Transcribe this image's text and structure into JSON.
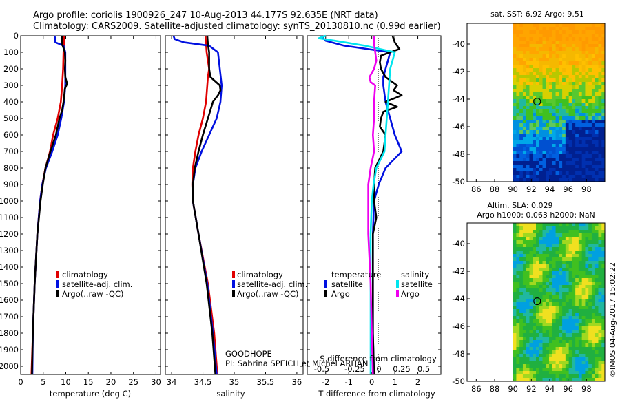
{
  "header": {
    "line1": "Argo profile: coriolis 1900926_247 10-Aug-2013 44.177S 92.635E (NRT data)",
    "line2": "Climatology: CARS2009. Satellite-adjusted climatology: synTS_20130810.nc (0.99d earlier)"
  },
  "colors": {
    "clim": "#e00000",
    "sat": "#0010e0",
    "argo": "#000000",
    "salsat": "#00e5ee",
    "salargo": "#ee00ee"
  },
  "depth_ticks": [
    0,
    100,
    200,
    300,
    400,
    500,
    600,
    700,
    800,
    900,
    1000,
    1100,
    1200,
    1300,
    1400,
    1500,
    1600,
    1700,
    1800,
    1900,
    2000
  ],
  "chart_data": [
    {
      "type": "line",
      "name": "temperature",
      "xlabel": "temperature (deg C)",
      "ylabel": "depth",
      "xlim": [
        0,
        31
      ],
      "ylim": [
        2050,
        0
      ],
      "xticks": [
        0,
        5,
        10,
        15,
        20,
        25,
        30
      ],
      "legend": [
        "climatology",
        "satellite-adj. clim.",
        "Argo(..raw -QC)"
      ],
      "series": [
        {
          "name": "climatology",
          "key": "clim",
          "depth": [
            0,
            50,
            100,
            200,
            300,
            400,
            500,
            600,
            700,
            800,
            900,
            1000,
            1200,
            1500,
            1800,
            2050
          ],
          "values": [
            9.6,
            9.6,
            9.5,
            9.4,
            9.2,
            8.9,
            8.2,
            7.2,
            6.5,
            5.5,
            4.8,
            4.3,
            3.7,
            3.1,
            2.7,
            2.4
          ]
        },
        {
          "name": "satellite-adj. clim.",
          "key": "sat",
          "depth": [
            0,
            10,
            40,
            60,
            100,
            200,
            300,
            400,
            500,
            600,
            700,
            800,
            900,
            1000,
            1200,
            1500,
            1800,
            2050
          ],
          "values": [
            7.5,
            7.6,
            7.7,
            9.5,
            9.9,
            9.9,
            9.9,
            9.6,
            9.0,
            8.2,
            7.0,
            5.6,
            4.8,
            4.3,
            3.7,
            3.1,
            2.7,
            2.6
          ]
        },
        {
          "name": "Argo(..raw -QC)",
          "key": "argo",
          "depth": [
            0,
            50,
            100,
            150,
            200,
            250,
            290,
            320,
            350,
            400,
            450,
            500,
            600,
            700,
            800,
            900,
            1000,
            1200,
            1500,
            1800,
            2050
          ],
          "values": [
            9.2,
            9.2,
            9.8,
            9.9,
            9.8,
            9.9,
            10.3,
            9.8,
            9.7,
            9.5,
            9.2,
            8.6,
            7.8,
            6.6,
            5.5,
            4.9,
            4.4,
            3.7,
            3.1,
            2.7,
            2.5
          ]
        }
      ]
    },
    {
      "type": "line",
      "name": "salinity",
      "xlabel": "salinity",
      "ylabel": "depth",
      "xlim": [
        33.9,
        36.1
      ],
      "ylim": [
        2050,
        0
      ],
      "xticks": [
        34,
        34.5,
        35,
        35.5,
        36
      ],
      "legend": [
        "climatology",
        "satellite-adj. clim.",
        "Argo(..raw -QC)"
      ],
      "annotations": [
        "GOODHOPE",
        "PI: Sabrina SPEICH et Michel ARHAN"
      ],
      "series": [
        {
          "name": "climatology",
          "key": "clim",
          "depth": [
            0,
            50,
            100,
            150,
            200,
            250,
            300,
            400,
            500,
            600,
            700,
            800,
            900,
            1000,
            1200,
            1500,
            1800,
            2050
          ],
          "values": [
            34.54,
            34.55,
            34.56,
            34.58,
            34.6,
            34.58,
            34.57,
            34.55,
            34.5,
            34.43,
            34.38,
            34.34,
            34.33,
            34.34,
            34.43,
            34.58,
            34.68,
            34.73
          ]
        },
        {
          "name": "satellite-adj. clim.",
          "key": "sat",
          "depth": [
            0,
            20,
            40,
            60,
            100,
            200,
            300,
            400,
            500,
            600,
            700,
            800,
            900,
            1000,
            1200,
            1500,
            1800,
            2050
          ],
          "values": [
            34.03,
            34.05,
            34.2,
            34.6,
            34.74,
            34.77,
            34.8,
            34.78,
            34.72,
            34.6,
            34.48,
            34.38,
            34.34,
            34.34,
            34.43,
            34.57,
            34.66,
            34.72
          ]
        },
        {
          "name": "Argo(..raw -QC)",
          "key": "argo",
          "depth": [
            0,
            50,
            100,
            150,
            200,
            250,
            300,
            330,
            360,
            400,
            500,
            600,
            700,
            800,
            900,
            1000,
            1200,
            1500,
            1800,
            2050
          ],
          "values": [
            34.57,
            34.58,
            34.6,
            34.6,
            34.6,
            34.62,
            34.77,
            34.78,
            34.74,
            34.66,
            34.58,
            34.5,
            34.43,
            34.37,
            34.34,
            34.34,
            34.43,
            34.56,
            34.65,
            34.7
          ]
        }
      ]
    },
    {
      "type": "line",
      "name": "difference",
      "xlabel": "T difference from climatology",
      "top_xlabel": "S difference from climatology",
      "xlim": [
        -2.8,
        3.0
      ],
      "ylim": [
        2050,
        0
      ],
      "xticks": [
        -2,
        -1,
        0,
        1,
        2
      ],
      "top_xticks": [
        "-0.5",
        "-0.25",
        "0",
        "0.25",
        "0.5"
      ],
      "legend": [
        "temperature",
        "salinity",
        "satellite",
        "Argo",
        "satellite",
        "Argo"
      ],
      "series": [
        {
          "name": "temperature satellite",
          "key": "sat",
          "depth": [
            0,
            30,
            60,
            100,
            150,
            200,
            250,
            300,
            400,
            500,
            600,
            700,
            800,
            900,
            1000,
            1200,
            1500,
            1800,
            2050
          ],
          "values": [
            -2.2,
            -2.0,
            -1.2,
            0.8,
            0.7,
            0.6,
            0.5,
            0.5,
            0.6,
            0.8,
            1.0,
            1.3,
            0.6,
            0.3,
            0.1,
            0.05,
            0.05,
            0.05,
            0.1
          ]
        },
        {
          "name": "temperature Argo",
          "key": "argo",
          "depth": [
            0,
            40,
            80,
            120,
            160,
            200,
            250,
            300,
            330,
            360,
            400,
            430,
            460,
            500,
            550,
            600,
            700,
            800,
            900,
            1000,
            1100,
            1200,
            1500,
            1800,
            2050
          ],
          "values": [
            0.9,
            1.0,
            1.2,
            0.4,
            0.35,
            0.4,
            0.6,
            1.1,
            0.95,
            1.3,
            0.6,
            1.1,
            0.5,
            0.4,
            0.35,
            0.6,
            0.5,
            0.15,
            0.1,
            0.1,
            0.2,
            0.05,
            0.05,
            0.05,
            0.1
          ]
        },
        {
          "name": "salinity satellite",
          "key": "salsat",
          "depth": [
            0,
            15,
            30,
            60,
            100,
            200,
            300,
            400,
            500,
            600,
            700,
            800,
            900,
            1000,
            1200,
            1500,
            1800,
            2050
          ],
          "values": [
            -2.0,
            -2.3,
            -1.6,
            -0.3,
            1.0,
            0.8,
            0.75,
            0.7,
            0.65,
            0.6,
            0.55,
            0.2,
            0.08,
            0.0,
            -0.05,
            -0.05,
            -0.05,
            -0.05
          ]
        },
        {
          "name": "salinity Argo",
          "key": "salargo",
          "depth": [
            0,
            50,
            100,
            150,
            200,
            250,
            280,
            300,
            400,
            500,
            600,
            700,
            800,
            900,
            1000,
            1200,
            1500,
            1800,
            2050
          ],
          "values": [
            0.1,
            0.1,
            0.15,
            0.2,
            0.1,
            -0.1,
            -0.05,
            0.15,
            0.1,
            0.1,
            0.05,
            0.1,
            -0.05,
            -0.15,
            -0.15,
            -0.15,
            -0.05,
            0.0,
            0.05
          ]
        }
      ]
    },
    {
      "type": "heatmap",
      "name": "sst_map",
      "title": "sat. SST: 6.92 Argo: 9.51",
      "xlim": [
        85,
        100
      ],
      "ylim": [
        -50,
        -38.5
      ],
      "xticks": [
        86,
        88,
        90,
        92,
        94,
        96,
        98
      ],
      "yticks": [
        -40,
        -42,
        -44,
        -46,
        -48,
        -50
      ],
      "data_xlim": [
        90,
        100
      ],
      "marker": {
        "lon": 92.635,
        "lat": -44.177
      }
    },
    {
      "type": "heatmap",
      "name": "sla_map",
      "title": "Altim. SLA: 0.029",
      "subtitle": "Argo h1000: 0.063 h2000: NaN",
      "xlim": [
        85,
        100
      ],
      "ylim": [
        -50,
        -38.5
      ],
      "xticks": [
        86,
        88,
        90,
        92,
        94,
        96,
        98
      ],
      "yticks": [
        -40,
        -42,
        -44,
        -46,
        -48,
        -50
      ],
      "data_xlim": [
        90,
        100
      ],
      "marker": {
        "lon": 92.635,
        "lat": -44.177
      }
    }
  ],
  "footer": {
    "credit": "©IMOS 04-Aug-2017 15:02:22"
  }
}
